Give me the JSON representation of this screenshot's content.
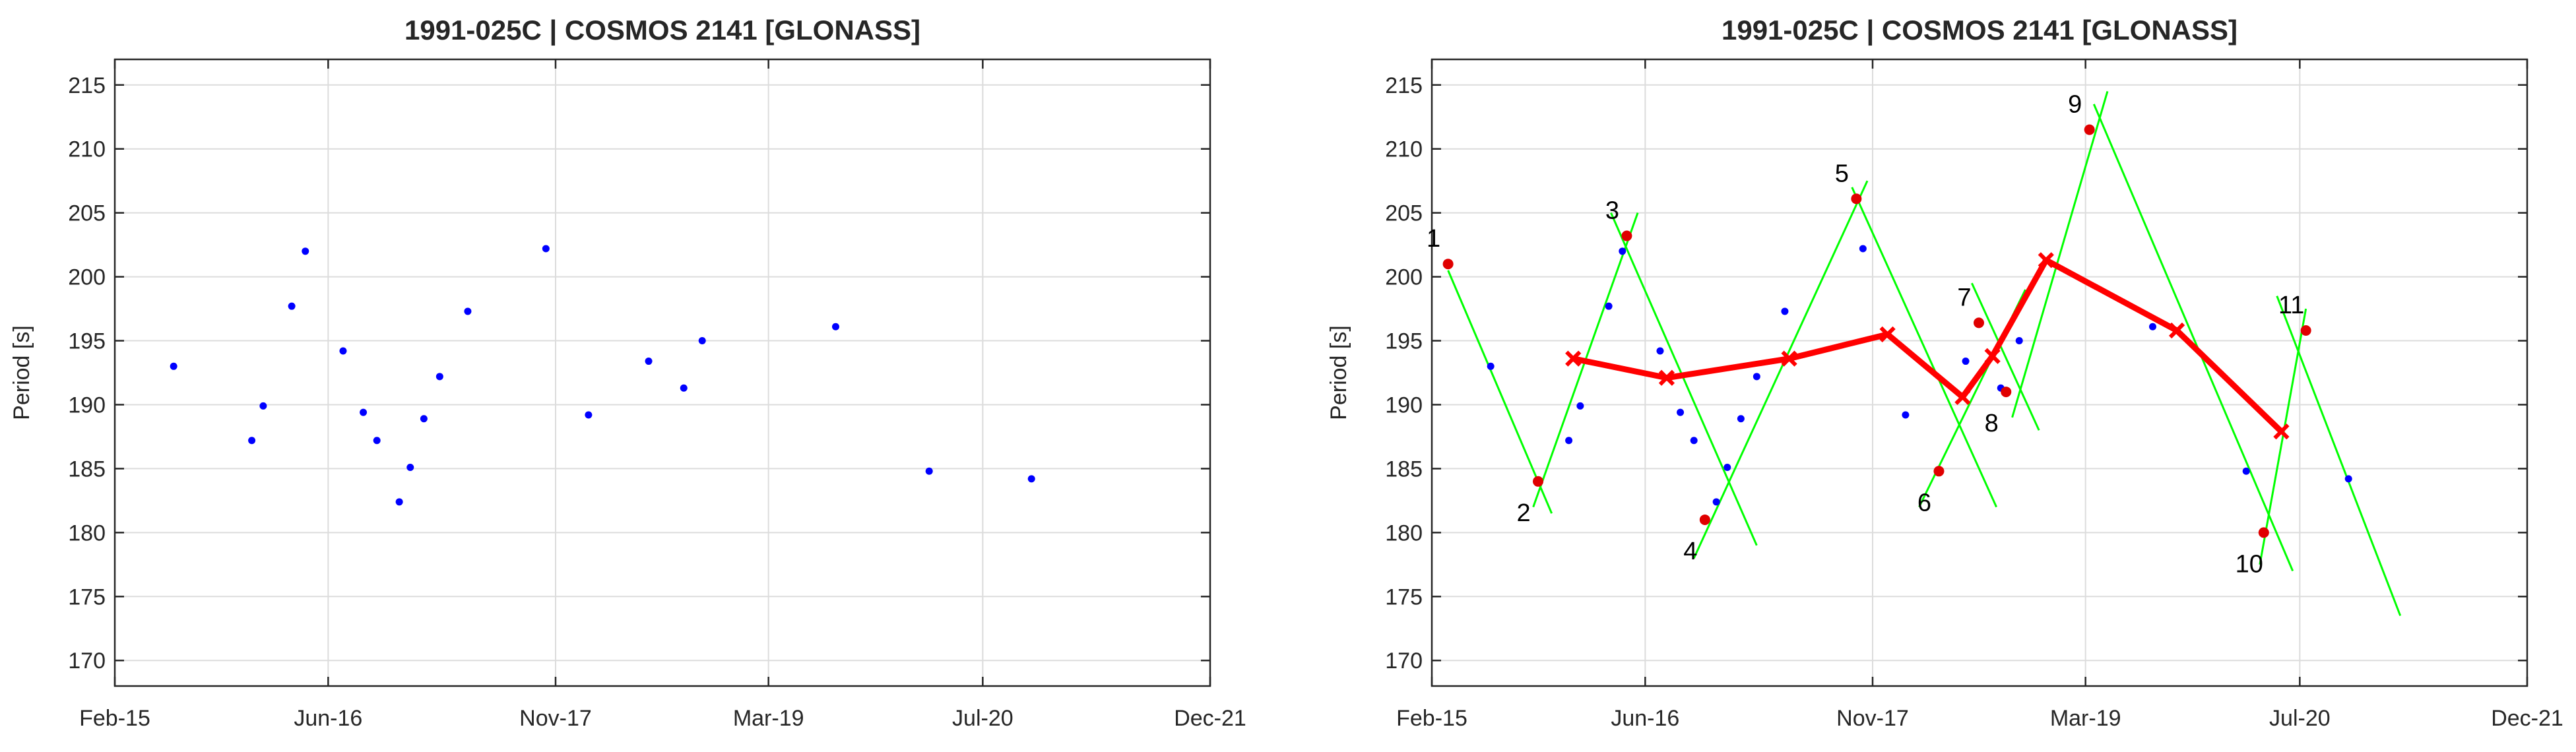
{
  "chart_data": [
    {
      "type": "scatter",
      "title": "1991-025C | COSMOS 2141 [GLONASS]",
      "xlabel": "",
      "ylabel": "Period [s]",
      "xlim": [
        "2015-02-01",
        "2021-12-01"
      ],
      "ylim": [
        168,
        217
      ],
      "xticks": [
        {
          "date": "2015-02-01",
          "label": "Feb-15"
        },
        {
          "date": "2016-06-01",
          "label": "Jun-16"
        },
        {
          "date": "2017-11-01",
          "label": "Nov-17"
        },
        {
          "date": "2019-03-01",
          "label": "Mar-19"
        },
        {
          "date": "2020-07-01",
          "label": "Jul-20"
        },
        {
          "date": "2021-12-01",
          "label": "Dec-21"
        }
      ],
      "yticks": [
        170,
        175,
        180,
        185,
        190,
        195,
        200,
        205,
        210,
        215
      ],
      "grid": true,
      "series": [
        {
          "color": "#0000ff",
          "marker": "dot",
          "points": [
            {
              "x": "2015-06-15",
              "y": 193.0
            },
            {
              "x": "2015-12-10",
              "y": 187.2
            },
            {
              "x": "2016-01-05",
              "y": 189.9
            },
            {
              "x": "2016-03-10",
              "y": 197.7
            },
            {
              "x": "2016-04-10",
              "y": 202.0
            },
            {
              "x": "2016-07-05",
              "y": 194.2
            },
            {
              "x": "2016-08-20",
              "y": 189.4
            },
            {
              "x": "2016-09-20",
              "y": 187.2
            },
            {
              "x": "2016-11-10",
              "y": 182.4
            },
            {
              "x": "2016-12-05",
              "y": 185.1
            },
            {
              "x": "2017-01-05",
              "y": 188.9
            },
            {
              "x": "2017-02-10",
              "y": 192.2
            },
            {
              "x": "2017-04-15",
              "y": 197.3
            },
            {
              "x": "2017-10-10",
              "y": 202.2
            },
            {
              "x": "2018-01-15",
              "y": 189.2
            },
            {
              "x": "2018-06-01",
              "y": 193.4
            },
            {
              "x": "2018-08-20",
              "y": 191.3
            },
            {
              "x": "2018-10-01",
              "y": 195.0
            },
            {
              "x": "2019-08-01",
              "y": 196.1
            },
            {
              "x": "2020-03-01",
              "y": 184.8
            },
            {
              "x": "2020-10-20",
              "y": 184.2
            }
          ]
        }
      ]
    },
    {
      "type": "line",
      "title": "1991-025C | COSMOS 2141 [GLONASS]",
      "xlabel": "",
      "ylabel": "Period [s]",
      "xlim": [
        "2015-02-01",
        "2021-12-01"
      ],
      "ylim": [
        168,
        217
      ],
      "xticks": [
        {
          "date": "2015-02-01",
          "label": "Feb-15"
        },
        {
          "date": "2016-06-01",
          "label": "Jun-16"
        },
        {
          "date": "2017-11-01",
          "label": "Nov-17"
        },
        {
          "date": "2019-03-01",
          "label": "Mar-19"
        },
        {
          "date": "2020-07-01",
          "label": "Jul-20"
        },
        {
          "date": "2021-12-01",
          "label": "Dec-21"
        }
      ],
      "yticks": [
        170,
        175,
        180,
        185,
        190,
        195,
        200,
        205,
        210,
        215
      ],
      "grid": true,
      "observations": {
        "color": "#0000ff",
        "marker": "dot",
        "points": [
          {
            "x": "2015-06-15",
            "y": 193.0
          },
          {
            "x": "2015-12-10",
            "y": 187.2
          },
          {
            "x": "2016-01-05",
            "y": 189.9
          },
          {
            "x": "2016-03-10",
            "y": 197.7
          },
          {
            "x": "2016-04-10",
            "y": 202.0
          },
          {
            "x": "2016-07-05",
            "y": 194.2
          },
          {
            "x": "2016-08-20",
            "y": 189.4
          },
          {
            "x": "2016-09-20",
            "y": 187.2
          },
          {
            "x": "2016-11-10",
            "y": 182.4
          },
          {
            "x": "2016-12-05",
            "y": 185.1
          },
          {
            "x": "2017-01-05",
            "y": 188.9
          },
          {
            "x": "2017-02-10",
            "y": 192.2
          },
          {
            "x": "2017-04-15",
            "y": 197.3
          },
          {
            "x": "2017-10-10",
            "y": 202.2
          },
          {
            "x": "2018-01-15",
            "y": 189.2
          },
          {
            "x": "2018-06-01",
            "y": 193.4
          },
          {
            "x": "2018-08-20",
            "y": 191.3
          },
          {
            "x": "2018-10-01",
            "y": 195.0
          },
          {
            "x": "2019-08-01",
            "y": 196.1
          },
          {
            "x": "2020-03-01",
            "y": 184.8
          },
          {
            "x": "2020-10-20",
            "y": 184.2
          }
        ]
      },
      "fit_lines": {
        "color": "#00ff00",
        "segments": [
          {
            "x1": "2015-03-10",
            "y1": 200.5,
            "x2": "2015-11-01",
            "y2": 181.5
          },
          {
            "x1": "2015-09-20",
            "y1": 182.0,
            "x2": "2016-05-15",
            "y2": 205.0
          },
          {
            "x1": "2016-03-15",
            "y1": 205.0,
            "x2": "2017-02-10",
            "y2": 179.0
          },
          {
            "x1": "2016-09-20",
            "y1": 178.0,
            "x2": "2017-10-20",
            "y2": 207.5
          },
          {
            "x1": "2017-09-15",
            "y1": 207.0,
            "x2": "2018-08-10",
            "y2": 182.0
          },
          {
            "x1": "2018-02-15",
            "y1": 182.0,
            "x2": "2018-10-15",
            "y2": 199.0
          },
          {
            "x1": "2018-06-15",
            "y1": 199.5,
            "x2": "2018-11-15",
            "y2": 188.0
          },
          {
            "x1": "2018-09-15",
            "y1": 189.0,
            "x2": "2019-04-20",
            "y2": 214.5
          },
          {
            "x1": "2019-03-20",
            "y1": 213.5,
            "x2": "2020-06-15",
            "y2": 177.0
          },
          {
            "x1": "2020-04-01",
            "y1": 177.5,
            "x2": "2020-07-15",
            "y2": 197.5
          },
          {
            "x1": "2020-05-10",
            "y1": 198.5,
            "x2": "2021-02-15",
            "y2": 173.5
          }
        ]
      },
      "extrema": {
        "color": "#e00000",
        "marker": "dot",
        "points": [
          {
            "label": "1",
            "x": "2015-03-10",
            "y": 201.0
          },
          {
            "label": "2",
            "x": "2015-10-01",
            "y": 184.0
          },
          {
            "label": "3",
            "x": "2016-04-20",
            "y": 203.2
          },
          {
            "label": "4",
            "x": "2016-10-15",
            "y": 181.0
          },
          {
            "label": "5",
            "x": "2017-09-25",
            "y": 206.1
          },
          {
            "label": "6",
            "x": "2018-04-01",
            "y": 184.8
          },
          {
            "label": "7",
            "x": "2018-07-01",
            "y": 196.4
          },
          {
            "label": "8",
            "x": "2018-09-01",
            "y": 191.0
          },
          {
            "label": "9",
            "x": "2019-03-10",
            "y": 211.5
          },
          {
            "label": "10",
            "x": "2020-04-10",
            "y": 180.0
          },
          {
            "label": "11",
            "x": "2020-07-15",
            "y": 195.8
          }
        ]
      },
      "mean_line": {
        "color": "#ff0000",
        "marker": "x",
        "points": [
          {
            "x": "2015-12-20",
            "y": 193.6
          },
          {
            "x": "2016-07-20",
            "y": 192.1
          },
          {
            "x": "2017-04-25",
            "y": 193.6
          },
          {
            "x": "2017-12-05",
            "y": 195.5
          },
          {
            "x": "2018-05-25",
            "y": 190.6
          },
          {
            "x": "2018-08-01",
            "y": 193.8
          },
          {
            "x": "2018-12-01",
            "y": 201.3
          },
          {
            "x": "2019-09-25",
            "y": 195.8
          },
          {
            "x": "2020-05-20",
            "y": 187.9
          }
        ]
      }
    }
  ]
}
